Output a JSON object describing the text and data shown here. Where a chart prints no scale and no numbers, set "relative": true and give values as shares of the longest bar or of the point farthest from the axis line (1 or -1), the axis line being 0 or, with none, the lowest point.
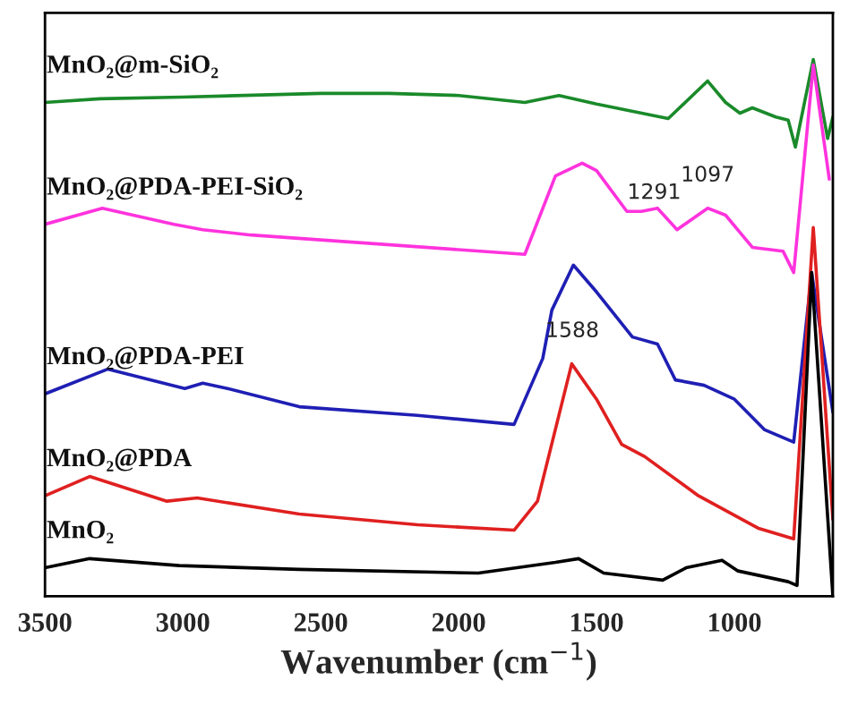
{
  "chart_data": {
    "type": "line",
    "relative": true,
    "xlabel": "Wavenumber (cm$^{−1}$)",
    "xlim": [
      3500,
      643
    ],
    "xticks": [
      3500,
      3000,
      2500,
      2000,
      1500,
      1000
    ],
    "tick_labels": "x",
    "grid": false,
    "legend": false,
    "series": [
      {
        "name": "MnO₂@m-SiO₂",
        "color": "#1a8a2a",
        "x": [
          3500,
          3300,
          3000,
          2500,
          2253,
          2000,
          1760,
          1636,
          1500,
          1240,
          1097,
          1032,
          980,
          935,
          850,
          805,
          779,
          714,
          662,
          643
        ],
        "values": [
          0.92,
          0.927,
          0.93,
          0.937,
          0.937,
          0.933,
          0.92,
          0.933,
          0.917,
          0.89,
          0.96,
          0.92,
          0.9,
          0.91,
          0.893,
          0.887,
          0.837,
          1.0,
          0.853,
          0.893
        ]
      },
      {
        "name": "MnO₂@PDA-PEI-SiO₂",
        "color": "#ff33dd",
        "x": [
          3500,
          3292,
          3032,
          2928,
          2753,
          1760,
          1649,
          1552,
          1500,
          1390,
          1337,
          1279,
          1208,
          1097,
          1032,
          935,
          824,
          785,
          714,
          656
        ],
        "values": [
          0.693,
          0.723,
          0.693,
          0.683,
          0.673,
          0.637,
          0.783,
          0.807,
          0.793,
          0.717,
          0.717,
          0.723,
          0.683,
          0.723,
          0.71,
          0.65,
          0.643,
          0.603,
          0.99,
          0.777
        ]
      },
      {
        "name": "MnO₂@PDA-PEI",
        "color": "#1f1fb4",
        "x": [
          3500,
          3273,
          2993,
          2928,
          2838,
          2578,
          2149,
          1799,
          1695,
          1662,
          1584,
          1500,
          1370,
          1279,
          1214,
          1110,
          1000,
          890,
          785,
          720,
          643
        ],
        "values": [
          0.377,
          0.423,
          0.387,
          0.397,
          0.387,
          0.353,
          0.337,
          0.32,
          0.443,
          0.533,
          0.617,
          0.567,
          0.483,
          0.47,
          0.403,
          0.393,
          0.367,
          0.31,
          0.287,
          0.603,
          0.343
        ]
      },
      {
        "name": "MnO₂@PDA",
        "color": "#e02020",
        "x": [
          3500,
          3338,
          3058,
          2948,
          2578,
          2149,
          1799,
          1714,
          1590,
          1500,
          1409,
          1325,
          1130,
          915,
          785,
          714,
          643
        ],
        "values": [
          0.187,
          0.223,
          0.177,
          0.183,
          0.153,
          0.133,
          0.123,
          0.177,
          0.433,
          0.367,
          0.283,
          0.26,
          0.187,
          0.127,
          0.107,
          0.687,
          0.143
        ]
      },
      {
        "name": "MnO₂",
        "color": "#000000",
        "x": [
          3500,
          3338,
          3013,
          2578,
          1929,
          1649,
          1565,
          1474,
          1260,
          1175,
          1045,
          987,
          805,
          773,
          720,
          643
        ],
        "values": [
          0.053,
          0.07,
          0.057,
          0.05,
          0.043,
          0.063,
          0.07,
          0.043,
          0.03,
          0.053,
          0.067,
          0.047,
          0.027,
          0.02,
          0.603,
          0.0
        ]
      }
    ],
    "annotations": [
      {
        "text": "1588",
        "x": 1588,
        "y": 0.433
      },
      {
        "text": "1291",
        "x": 1291,
        "y": 0.723
      },
      {
        "text": "1097",
        "x": 1097,
        "y": 0.723
      }
    ]
  }
}
